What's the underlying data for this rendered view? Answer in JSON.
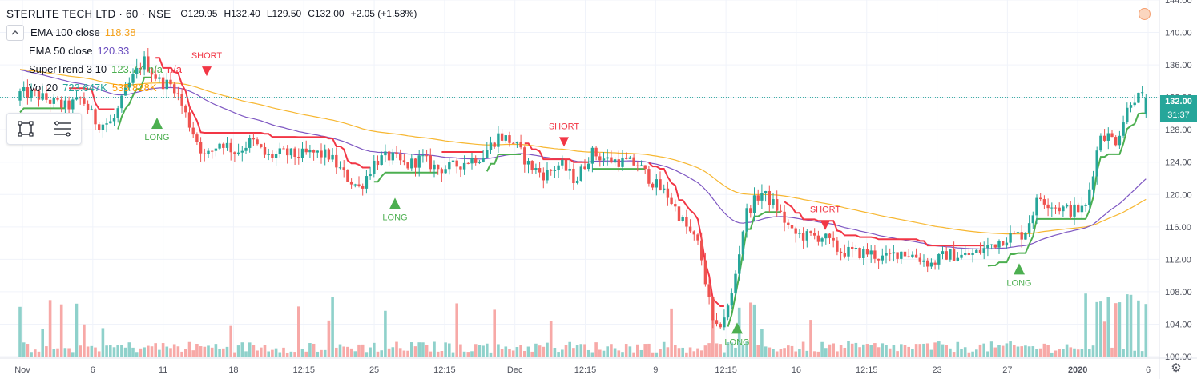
{
  "legend": {
    "symbol": "STERLITE TECH LTD · 60 · NSE",
    "open": "O129.95",
    "high": "H132.40",
    "low": "L129.50",
    "close": "C132.00",
    "change": "+2.05 (+1.58%)",
    "ema100_name": "EMA 100 close",
    "ema100_value": "118.38",
    "ema50_name": "EMA 50 close",
    "ema50_value": "120.33",
    "st_name": "SuperTrend 3 10",
    "st_value": "123.77",
    "st_na1": "n/a",
    "st_na2": "n/a",
    "vol_name": "Vol 20",
    "vol_value": "723.647K",
    "vol_ma_value": "535.828K",
    "collapse_icon": "chevron-up-icon"
  },
  "price_axis": {
    "last_price": "132.00",
    "countdown": "31:37"
  },
  "colors": {
    "up": "#26a69a",
    "down": "#ef5350",
    "ema100": "#f7b731",
    "ema50": "#7e57c2",
    "st_up": "#4caf50",
    "st_down": "#f23645",
    "vol_up": "#8fd1cb",
    "vol_down": "#f7a9a7",
    "vol_ma": "#ff9800",
    "signal_long": "#4caf50",
    "signal_short": "#f23645",
    "ema100_text": "#f4a21d",
    "ema50_text": "#6c4fbf",
    "vol_text": "#26a69a"
  },
  "chart_data": {
    "type": "candlestick",
    "title": "STERLITE TECH LTD · 60 · NSE",
    "ylim": [
      100,
      144
    ],
    "y_ticks": [
      "144.00",
      "140.00",
      "136.00",
      "132.00",
      "128.00",
      "124.00",
      "120.00",
      "116.00",
      "112.00",
      "108.00",
      "104.00",
      "100.00"
    ],
    "x_tick_labels": [
      "Nov",
      "6",
      "11",
      "18",
      "12:15",
      "25",
      "12:15",
      "Dec",
      "12:15",
      "9",
      "12:15",
      "16",
      "12:15",
      "23",
      "27",
      "2020",
      "6"
    ],
    "bars_per_day": 6,
    "session_closes": [
      132.3,
      131.5,
      130.8,
      131.8,
      128.7,
      128.9,
      133.3,
      136.6,
      134.0,
      133.3,
      128.6,
      124.5,
      126.6,
      125.2,
      126.7,
      124.6,
      125.1,
      124.8,
      125.1,
      124.8,
      122.4,
      120.8,
      124.2,
      124.7,
      123.5,
      124.5,
      123.2,
      123.4,
      124.2,
      124.9,
      127.3,
      126.4,
      123.5,
      122.4,
      123.8,
      121.7,
      125.2,
      124.3,
      124.1,
      123.7,
      121.5,
      119.8,
      116.4,
      113.6,
      102.8,
      106.5,
      117.6,
      120.3,
      118.4,
      115.2,
      114.8,
      114.8,
      113.1,
      112.8,
      112.8,
      112.0,
      113.0,
      112.4,
      111.4,
      112.6,
      112.4,
      112.8,
      113.9,
      114.8,
      115.1,
      119.7,
      118.6,
      118.0,
      118.2,
      127.6,
      126.7,
      132.0
    ],
    "ema100_close": 118.38,
    "ema50_close": 120.33,
    "supertrend_last": 123.77,
    "volume_last": "723.647K",
    "volume_ma_last": "535.828K",
    "signals": [
      {
        "type": "LONG",
        "price": 129.5
      },
      {
        "type": "SHORT",
        "price": 135.6
      },
      {
        "type": "LONG",
        "price": 119.6
      },
      {
        "type": "SHORT",
        "price": 126.9
      },
      {
        "type": "LONG",
        "price": 104.2
      },
      {
        "type": "SHORT",
        "price": 116.6
      },
      {
        "type": "LONG",
        "price": 111.5
      }
    ]
  }
}
